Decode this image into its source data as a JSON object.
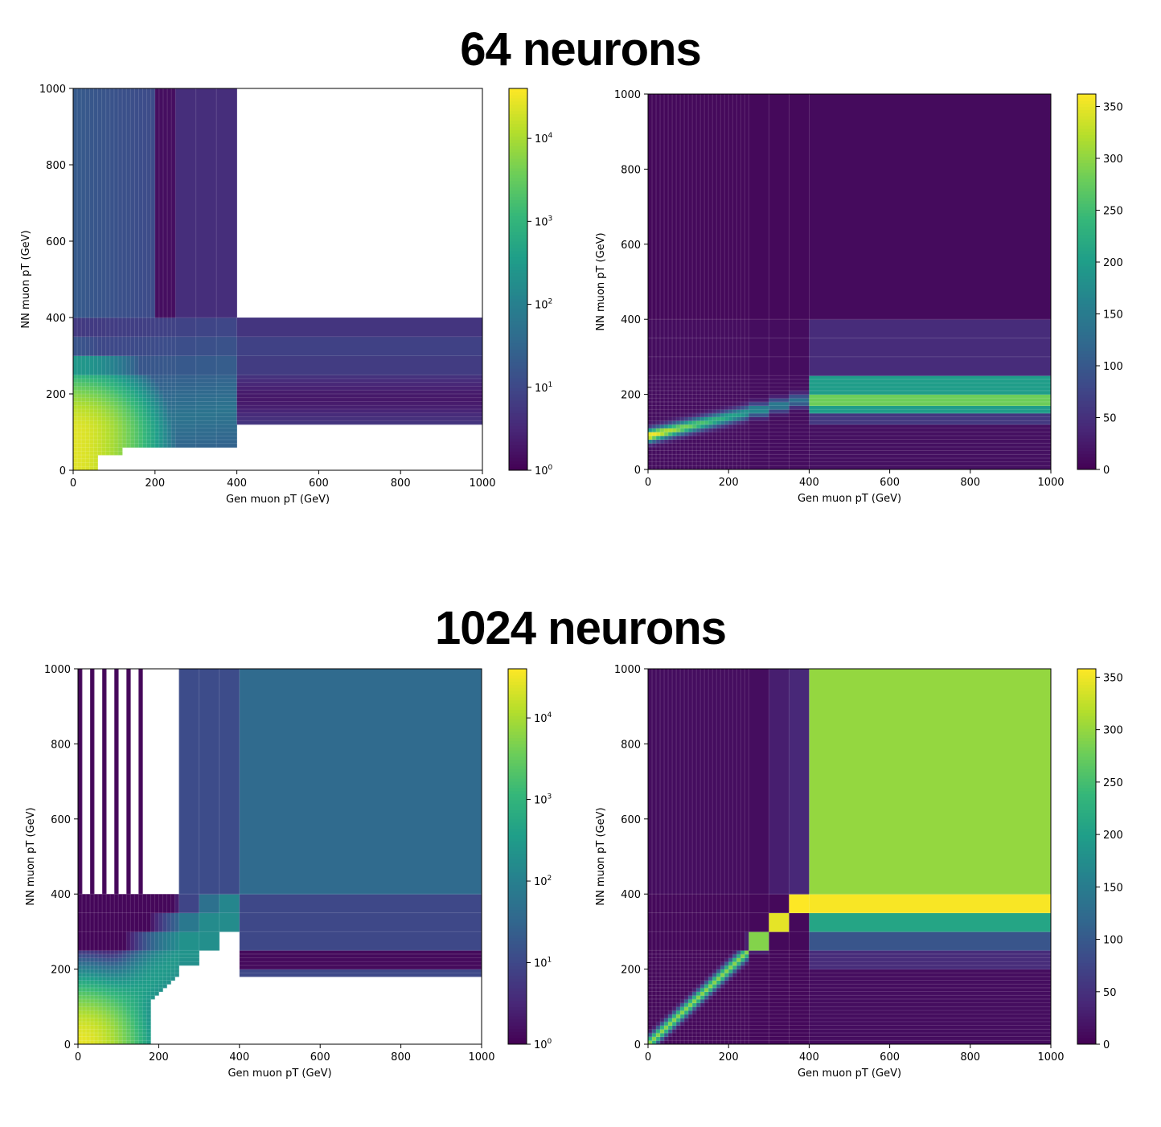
{
  "sections": [
    {
      "title": "64 neurons"
    },
    {
      "title": "1024 neurons"
    }
  ],
  "colormap": [
    "#440154",
    "#482878",
    "#3e4989",
    "#31688e",
    "#26828e",
    "#1f9e89",
    "#35b779",
    "#6ece58",
    "#b5de2b",
    "#fde725"
  ],
  "chart_data": [
    {
      "type": "heatmap",
      "section": "64 neurons",
      "xlabel": "Gen muon pT (GeV)",
      "ylabel": "NN muon pT (GeV)",
      "xlim": [
        0,
        1000
      ],
      "ylim": [
        0,
        1000
      ],
      "xticks": [
        0,
        200,
        400,
        600,
        800,
        1000
      ],
      "yticks": [
        0,
        200,
        400,
        600,
        800,
        1000
      ],
      "scale": "log",
      "colorbar": {
        "min": 1,
        "max": 40000,
        "ticks": [
          {
            "v": 1,
            "base": "10",
            "exp": "0"
          },
          {
            "v": 10,
            "base": "10",
            "exp": "1"
          },
          {
            "v": 100,
            "base": "10",
            "exp": "2"
          },
          {
            "v": 1000,
            "base": "10",
            "exp": "3"
          },
          {
            "v": 10000,
            "base": "10",
            "exp": "4"
          }
        ]
      },
      "regions": [
        {
          "x": [
            0,
            400
          ],
          "y": [
            400,
            1000
          ],
          "value": 12
        },
        {
          "x": [
            400,
            1000
          ],
          "y": [
            120,
            400
          ],
          "value": 6
        },
        {
          "x": [
            0,
            300
          ],
          "y": [
            120,
            400
          ],
          "value": 70
        },
        {
          "x": [
            0,
            200
          ],
          "y": [
            40,
            240
          ],
          "value": 900
        },
        {
          "x": [
            20,
            100
          ],
          "y": [
            60,
            160
          ],
          "value": 22000
        }
      ]
    },
    {
      "type": "heatmap",
      "section": "64 neurons",
      "xlabel": "Gen muon pT (GeV)",
      "ylabel": "NN muon pT (GeV)",
      "xlim": [
        0,
        1000
      ],
      "ylim": [
        0,
        1000
      ],
      "xticks": [
        0,
        200,
        400,
        600,
        800,
        1000
      ],
      "yticks": [
        0,
        200,
        400,
        600,
        800,
        1000
      ],
      "scale": "linear",
      "colorbar": {
        "min": 0,
        "max": 362,
        "ticks": [
          {
            "v": 0,
            "label": "0"
          },
          {
            "v": 50,
            "label": "50"
          },
          {
            "v": 100,
            "label": "100"
          },
          {
            "v": 150,
            "label": "150"
          },
          {
            "v": 200,
            "label": "200"
          },
          {
            "v": 250,
            "label": "250"
          },
          {
            "v": 300,
            "label": "300"
          },
          {
            "v": 350,
            "label": "350"
          }
        ]
      },
      "regions": [
        {
          "x": [
            400,
            1000
          ],
          "y": [
            400,
            1000
          ],
          "value": 8
        },
        {
          "x": [
            400,
            1000
          ],
          "y": [
            250,
            400
          ],
          "value": 40
        },
        {
          "x": [
            400,
            1000
          ],
          "y": [
            150,
            250
          ],
          "value": 230
        },
        {
          "x": [
            0,
            400
          ],
          "y": [
            80,
            160
          ],
          "value": 200
        },
        {
          "x": [
            0,
            100
          ],
          "y": [
            80,
            110
          ],
          "value": 360
        }
      ]
    },
    {
      "type": "heatmap",
      "section": "1024 neurons",
      "xlabel": "Gen muon pT (GeV)",
      "ylabel": "NN muon pT (GeV)",
      "xlim": [
        0,
        1000
      ],
      "ylim": [
        0,
        1000
      ],
      "xticks": [
        0,
        200,
        400,
        600,
        800,
        1000
      ],
      "yticks": [
        0,
        200,
        400,
        600,
        800,
        1000
      ],
      "scale": "log",
      "colorbar": {
        "min": 1,
        "max": 40000,
        "ticks": [
          {
            "v": 1,
            "base": "10",
            "exp": "0"
          },
          {
            "v": 10,
            "base": "10",
            "exp": "1"
          },
          {
            "v": 100,
            "base": "10",
            "exp": "2"
          },
          {
            "v": 1000,
            "base": "10",
            "exp": "3"
          },
          {
            "v": 10000,
            "base": "10",
            "exp": "4"
          }
        ]
      },
      "regions": [
        {
          "x": [
            400,
            1000
          ],
          "y": [
            400,
            1000
          ],
          "value": 40
        },
        {
          "x": [
            250,
            400
          ],
          "y": [
            400,
            1000
          ],
          "value": 10
        },
        {
          "x": [
            400,
            1000
          ],
          "y": [
            180,
            400
          ],
          "value": 15
        },
        {
          "x": [
            0,
            250
          ],
          "y": [
            0,
            250
          ],
          "value": 1200
        },
        {
          "x": [
            0,
            80
          ],
          "y": [
            0,
            120
          ],
          "value": 25000
        }
      ]
    },
    {
      "type": "heatmap",
      "section": "1024 neurons",
      "xlabel": "Gen muon pT (GeV)",
      "ylabel": "NN muon pT (GeV)",
      "xlim": [
        0,
        1000
      ],
      "ylim": [
        0,
        1000
      ],
      "xticks": [
        0,
        200,
        400,
        600,
        800,
        1000
      ],
      "yticks": [
        0,
        200,
        400,
        600,
        800,
        1000
      ],
      "scale": "linear",
      "colorbar": {
        "min": 0,
        "max": 358,
        "ticks": [
          {
            "v": 0,
            "label": "0"
          },
          {
            "v": 50,
            "label": "50"
          },
          {
            "v": 100,
            "label": "100"
          },
          {
            "v": 150,
            "label": "150"
          },
          {
            "v": 200,
            "label": "200"
          },
          {
            "v": 250,
            "label": "250"
          },
          {
            "v": 300,
            "label": "300"
          },
          {
            "v": 350,
            "label": "350"
          }
        ]
      },
      "regions": [
        {
          "x": [
            400,
            1000
          ],
          "y": [
            400,
            1000
          ],
          "value": 300
        },
        {
          "x": [
            400,
            1000
          ],
          "y": [
            350,
            400
          ],
          "value": 350
        },
        {
          "x": [
            400,
            1000
          ],
          "y": [
            300,
            350
          ],
          "value": 200
        },
        {
          "x": [
            400,
            1000
          ],
          "y": [
            250,
            300
          ],
          "value": 90
        },
        {
          "x": [
            0,
            400
          ],
          "y": [
            0,
            400
          ],
          "value": 260
        }
      ]
    }
  ]
}
